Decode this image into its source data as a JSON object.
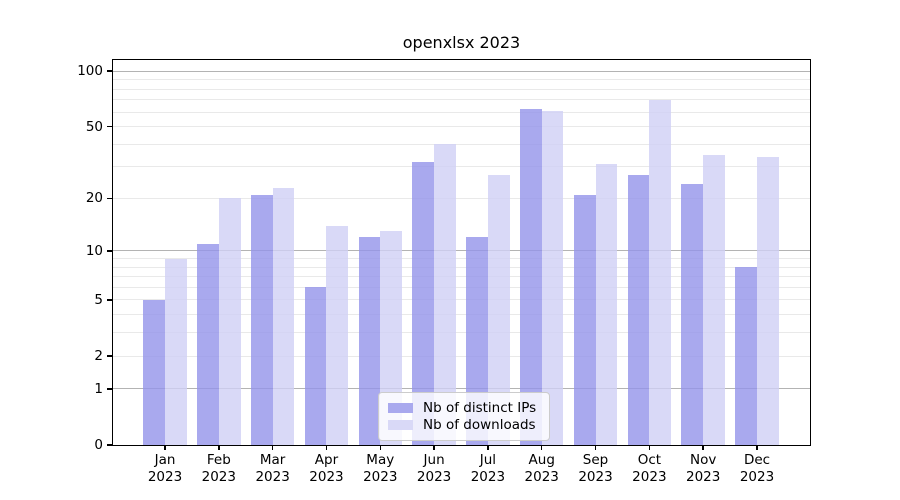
{
  "title": "openxlsx 2023",
  "legend": {
    "items": [
      {
        "label": "Nb of distinct IPs"
      },
      {
        "label": "Nb of downloads"
      }
    ]
  },
  "chart_data": {
    "type": "bar",
    "title": "openxlsx 2023",
    "categories": [
      "Jan",
      "Feb",
      "Mar",
      "Apr",
      "May",
      "Jun",
      "Jul",
      "Aug",
      "Sep",
      "Oct",
      "Nov",
      "Dec"
    ],
    "year_label": "2023",
    "series": [
      {
        "name": "Nb of distinct IPs",
        "color": "#a9a9ee",
        "color_rgba": "rgba(148,148,234,0.8)",
        "values": [
          5,
          11,
          21,
          6,
          12,
          32,
          12,
          62,
          21,
          27,
          24,
          8
        ]
      },
      {
        "name": "Nb of downloads",
        "color": "#d9d9f7",
        "color_rgba": "rgba(208,208,245,0.8)",
        "values": [
          9,
          20,
          23,
          14,
          13,
          40,
          27,
          61,
          31,
          70,
          35,
          34
        ]
      }
    ],
    "yscale": "log1p",
    "ylim": [
      0,
      115
    ],
    "yticks": [
      100,
      50,
      20,
      10,
      5,
      2,
      1,
      0
    ],
    "major_gridlines": [
      1,
      10,
      100
    ],
    "minor_gridlines": [
      2,
      3,
      4,
      5,
      6,
      7,
      8,
      9,
      20,
      30,
      40,
      50,
      60,
      70,
      80,
      90
    ],
    "grid": true,
    "legend_position": "lower center",
    "xlabel": "",
    "ylabel": ""
  },
  "colors": {
    "background": "#ffffff",
    "axis": "#000000",
    "text": "#000000",
    "major_grid": "#b3b3b3",
    "minor_grid": "#e9e9e9",
    "legend_border": "#cccccc",
    "legend_bg": "rgba(255,255,255,0.8)"
  }
}
